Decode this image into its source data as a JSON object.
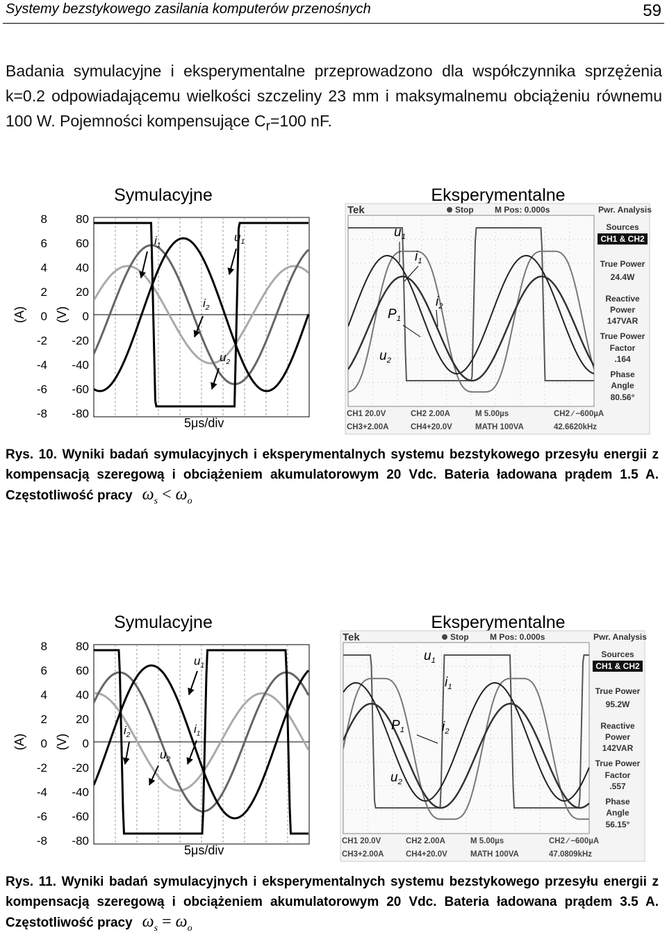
{
  "header": {
    "title": "Systemy bezstykowego zasilania komputerów przenośnych",
    "page": 59
  },
  "paragraph": {
    "text": "Badania symulacyjne i eksperymentalne przeprowadzono dla współczynnika sprzężenia k=0.2 odpowiadającemu wielkości szczeliny 23 mm i maksymalnemu obciążeniu równemu 100 W. Pojemności kompensujące C",
    "sub": "r",
    "tail": "=100 nF."
  },
  "figures": [
    {
      "sim_title": "Symulacyjne",
      "exp_title": "Eksperymentalne",
      "a_label": "(A)",
      "v_label": "(V)",
      "a_ticks": [
        8,
        6,
        4,
        2,
        0,
        -2,
        -4,
        -6,
        -8
      ],
      "v_ticks": [
        80,
        60,
        40,
        20,
        0,
        -20,
        -40,
        -60,
        -80
      ],
      "time_div": "5μs/div",
      "sim_labels": [
        {
          "base": "i",
          "sub": "1"
        },
        {
          "base": "u",
          "sub": "1"
        },
        {
          "base": "i",
          "sub": "2"
        },
        {
          "base": "u",
          "sub": "2"
        }
      ],
      "exp_labels": [
        {
          "base": "u",
          "sub": "1"
        },
        {
          "base": "i",
          "sub": "1"
        },
        {
          "base": "P",
          "sub": "1"
        },
        {
          "base": "i",
          "sub": "2"
        },
        {
          "base": "u",
          "sub": "2"
        }
      ],
      "scope": {
        "brand": "Tek",
        "state": "Stop",
        "mpos": "M Pos: 0.000s",
        "menu": "Pwr. Analysis",
        "side": [
          "Sources",
          "CH1 & CH2",
          "True Power",
          "24.4W",
          "Reactive",
          "Power",
          "147VAR",
          "True Power",
          "Factor",
          ".164",
          "Phase",
          "Angle",
          "80.56°"
        ],
        "bottom": [
          "CH1 20.0V",
          "CH2 2.00A",
          "M 5.00µs",
          "CH2 ∕ −600µA",
          "CH3+2.00A",
          "CH4+20.0V",
          "MATH 100VA",
          "42.6620kHz"
        ]
      },
      "caption": {
        "label": "Rys. 10.",
        "text": "Wyniki badań symulacyjnych i eksperymentalnych systemu bezstykowego przesyłu energii z kompensacją szeregową i obciążeniem akumulatorowym 20 Vdc. Bateria ładowana prądem 1.5 A. Częstotliwość pracy",
        "formula": [
          "ω",
          "s",
          "<",
          "ω",
          "o"
        ]
      }
    },
    {
      "sim_title": "Symulacyjne",
      "exp_title": "Eksperymentalne",
      "a_label": "(A)",
      "v_label": "(V)",
      "a_ticks": [
        8,
        6,
        4,
        2,
        0,
        -2,
        -4,
        -6,
        -8
      ],
      "v_ticks": [
        80,
        60,
        40,
        20,
        0,
        -20,
        -40,
        -60,
        -80
      ],
      "time_div": "5μs/div",
      "sim_labels": [
        {
          "base": "u",
          "sub": "1"
        },
        {
          "base": "i",
          "sub": "2"
        },
        {
          "base": "i",
          "sub": "1"
        },
        {
          "base": "u",
          "sub": "2"
        }
      ],
      "exp_labels": [
        {
          "base": "u",
          "sub": "1"
        },
        {
          "base": "i",
          "sub": "1"
        },
        {
          "base": "P",
          "sub": "1"
        },
        {
          "base": "i",
          "sub": "2"
        },
        {
          "base": "u",
          "sub": "2"
        }
      ],
      "scope": {
        "brand": "Tek",
        "state": "Stop",
        "mpos": "M Pos: 0.000s",
        "menu": "Pwr. Analysis",
        "side": [
          "Sources",
          "CH1 & CH2",
          "True Power",
          "95.2W",
          "Reactive",
          "Power",
          "142VAR",
          "True Power",
          "Factor",
          ".557",
          "Phase",
          "Angle",
          "56.15°"
        ],
        "bottom": [
          "CH1 20.0V",
          "CH2 2.00A",
          "M 5.00µs",
          "CH2 ∕ −600µA",
          "CH3+2.00A",
          "CH4+20.0V",
          "MATH 100VA",
          "47.0809kHz"
        ]
      },
      "caption": {
        "label": "Rys. 11.",
        "text": "Wyniki badań symulacyjnych i eksperymentalnych systemu bezstykowego przesyłu energii z kompensacją szeregową i obciążeniem akumulatorowym 20 Vdc. Bateria ładowana prądem 3.5 A. Częstotliwość pracy",
        "formula": [
          "ω",
          "s",
          "=",
          "ω",
          "o"
        ]
      }
    }
  ]
}
